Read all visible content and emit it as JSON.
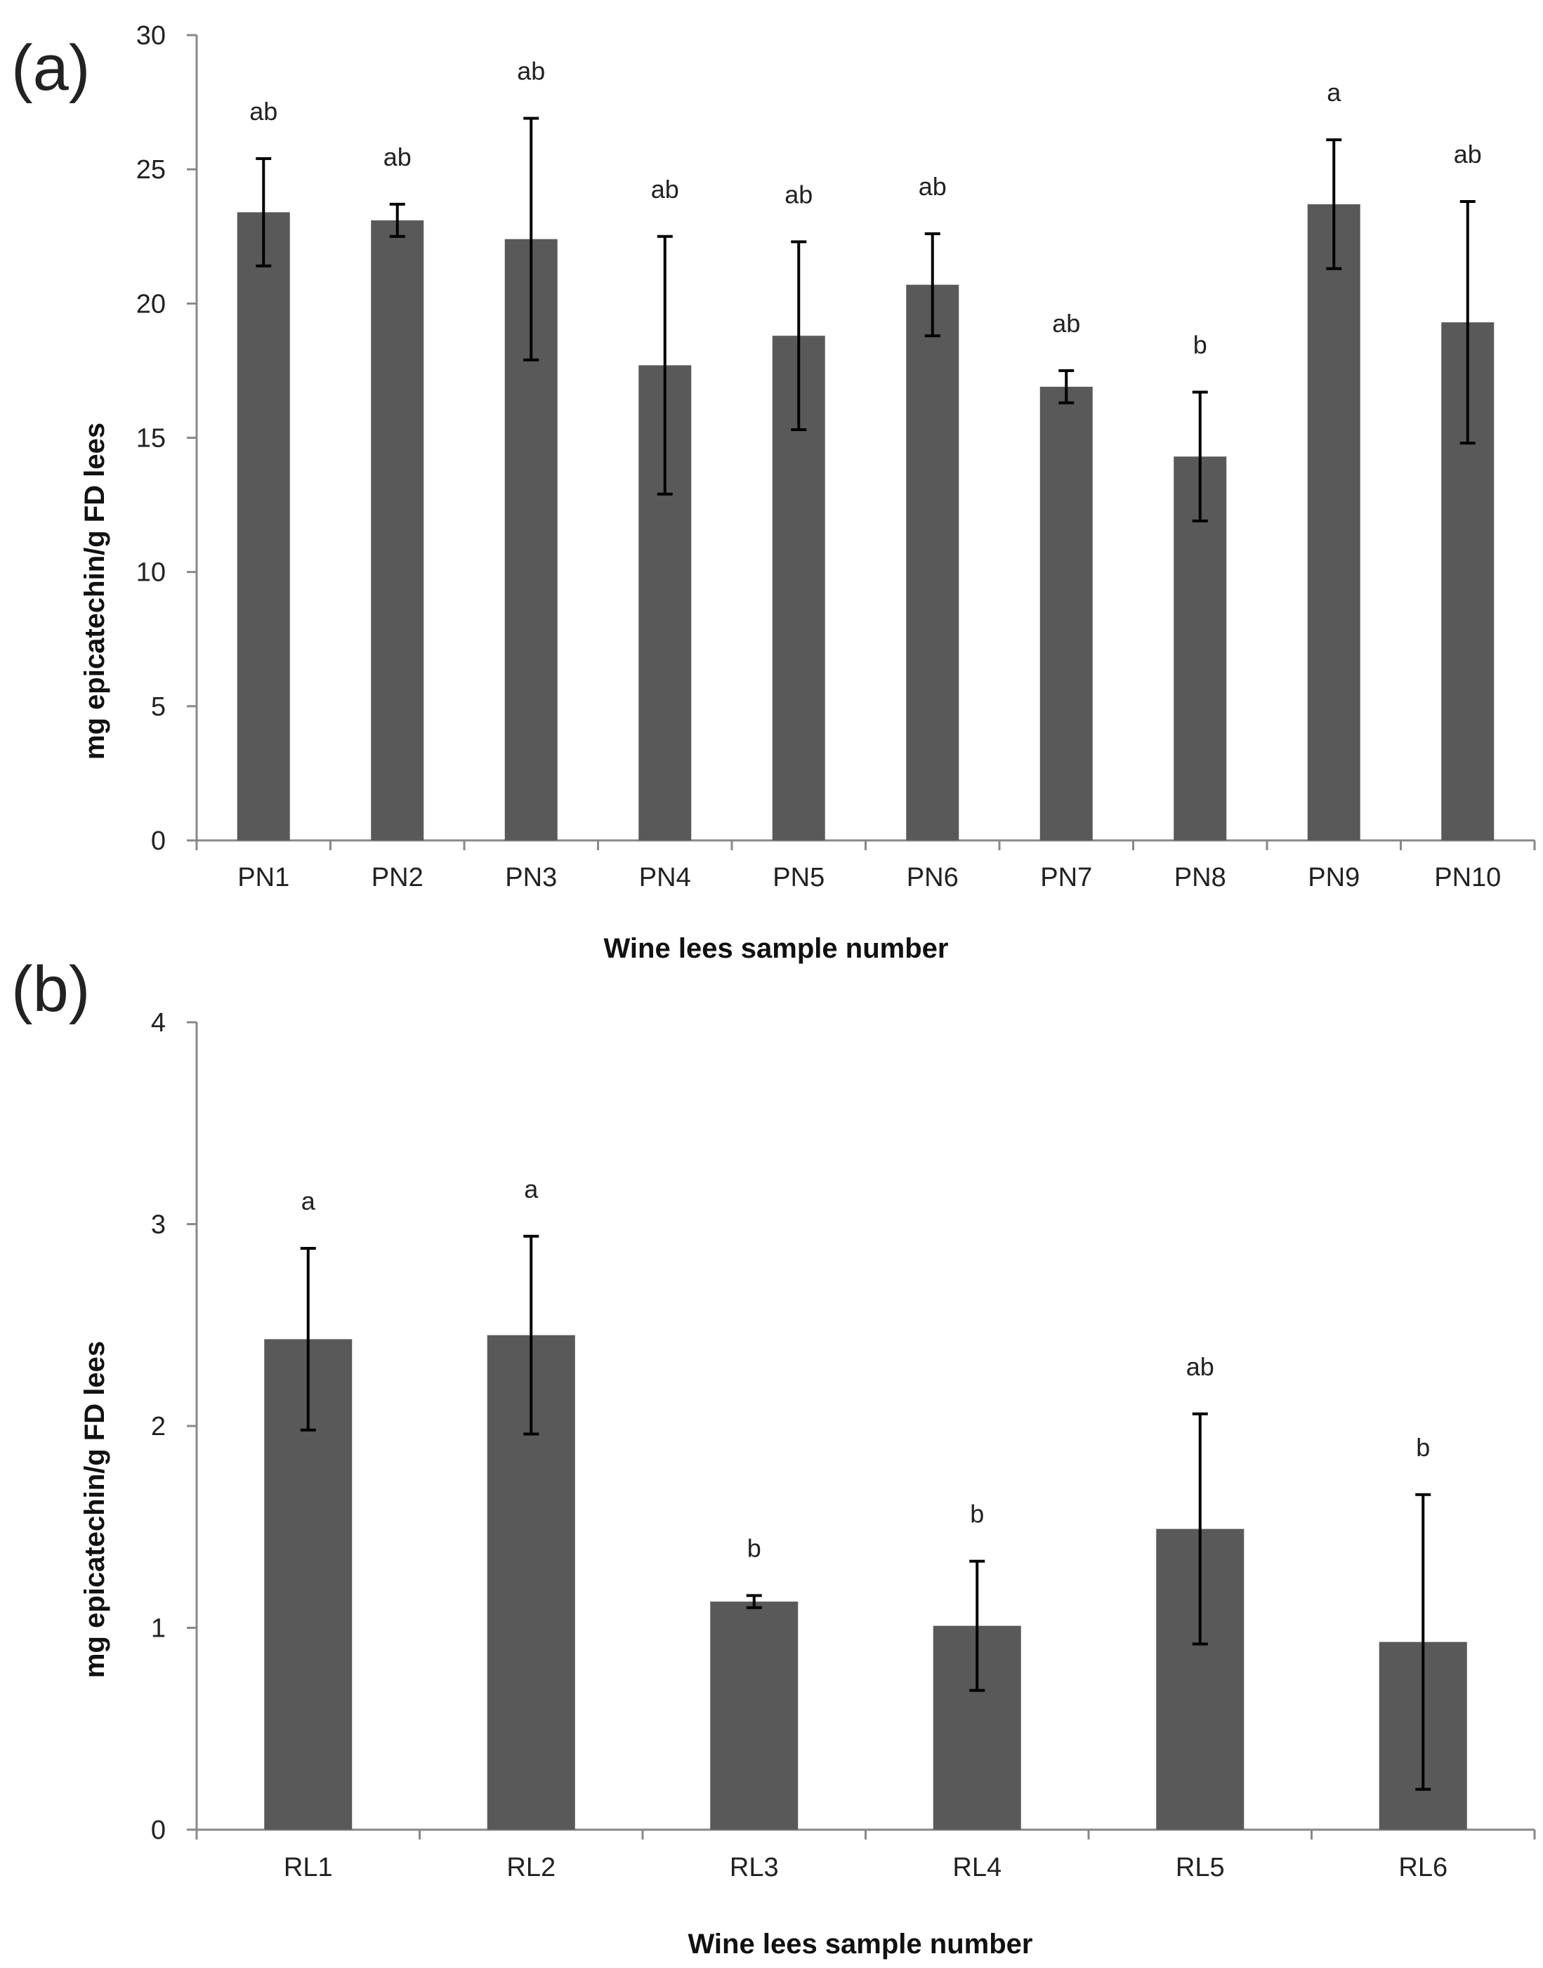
{
  "chart_data": [
    {
      "type": "bar",
      "panel_label": "(a)",
      "categories": [
        "PN1",
        "PN2",
        "PN3",
        "PN4",
        "PN5",
        "PN6",
        "PN7",
        "PN8",
        "PN9",
        "PN10"
      ],
      "values": [
        23.4,
        23.1,
        22.4,
        17.7,
        18.8,
        20.7,
        16.9,
        14.3,
        23.7,
        19.3
      ],
      "errors": [
        2.0,
        0.6,
        4.5,
        4.8,
        3.5,
        1.9,
        0.6,
        2.4,
        2.4,
        4.5
      ],
      "significance": [
        "ab",
        "ab",
        "ab",
        "ab",
        "ab",
        "ab",
        "ab",
        "b",
        "a",
        "ab"
      ],
      "ylim": [
        0,
        30
      ],
      "yticks": [
        0,
        5,
        10,
        15,
        20,
        25,
        30
      ],
      "ylabel": "mg epicatechin/g FD lees",
      "xlabel": "Wine lees sample number",
      "bar_color": "#595959"
    },
    {
      "type": "bar",
      "panel_label": "(b)",
      "categories": [
        "RL1",
        "RL2",
        "RL3",
        "RL4",
        "RL5",
        "RL6"
      ],
      "values": [
        2.43,
        2.45,
        1.13,
        1.01,
        1.49,
        0.93
      ],
      "errors": [
        0.45,
        0.49,
        0.03,
        0.32,
        0.57,
        0.73
      ],
      "significance": [
        "a",
        "a",
        "b",
        "b",
        "ab",
        "b"
      ],
      "ylim": [
        0,
        4
      ],
      "yticks": [
        0,
        1,
        2,
        3,
        4
      ],
      "ylabel": "mg epicatechin/g FD lees",
      "xlabel": "Wine lees sample number",
      "bar_color": "#595959"
    }
  ]
}
